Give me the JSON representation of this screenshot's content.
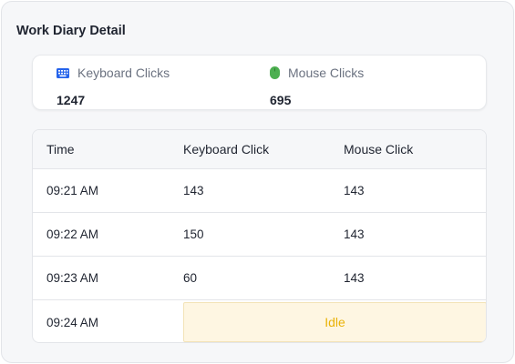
{
  "title": "Work Diary Detail",
  "summary": {
    "keyboard": {
      "icon": "keyboard-icon",
      "label": "Keyboard Clicks",
      "value": "1247",
      "color": "#2563eb"
    },
    "mouse": {
      "icon": "mouse-icon",
      "label": "Mouse Clicks",
      "value": "695",
      "color": "#4caf50"
    }
  },
  "table": {
    "columns": [
      "Time",
      "Keyboard Click",
      "Mouse Click"
    ],
    "rows": [
      {
        "time": "09:21 AM",
        "keyboard": "143",
        "mouse": "143"
      },
      {
        "time": "09:22 AM",
        "keyboard": "150",
        "mouse": "143"
      },
      {
        "time": "09:23 AM",
        "keyboard": "60",
        "mouse": "143"
      },
      {
        "time": "09:24 AM",
        "status": "Idle"
      }
    ]
  },
  "colors": {
    "idle_text": "#eab308",
    "idle_bg": "#fef6e2"
  }
}
